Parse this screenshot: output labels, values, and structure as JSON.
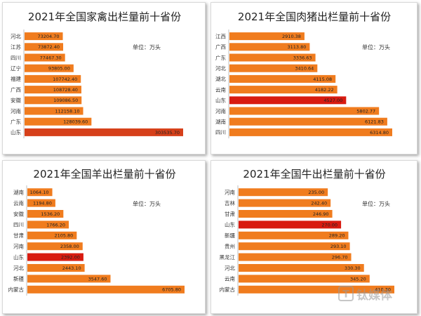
{
  "chart_data": [
    {
      "type": "bar",
      "orientation": "horizontal",
      "title": "2021年全国家禽出栏量前十省份",
      "unit_label": "单位：万头",
      "categories": [
        "河北",
        "江苏",
        "四川",
        "辽宁",
        "福建",
        "广西",
        "安徽",
        "河南",
        "广东",
        "山东"
      ],
      "values": [
        73204.7,
        73872.4,
        77467.3,
        93805.0,
        107742.4,
        108728.4,
        109086.5,
        112158.1,
        128039.6,
        303535.7
      ],
      "value_labels": [
        "73204.70",
        "73872.40",
        "77467.30",
        "93805.00",
        "107742.40",
        "108728.40",
        "109086.50",
        "112158.10",
        "128039.60",
        "303535.70"
      ],
      "bar_colors": [
        "#f07c1e",
        "#f07c1e",
        "#f07c1e",
        "#f07c1e",
        "#f07c1e",
        "#f07c1e",
        "#f07c1e",
        "#f07c1e",
        "#f07c1e",
        "#d6401a"
      ],
      "xlim": [
        0,
        303535.7
      ]
    },
    {
      "type": "bar",
      "orientation": "horizontal",
      "title": "2021年全国肉猪出栏量前十省份",
      "unit_label": "单位：万头",
      "categories": [
        "江西",
        "广西",
        "广东",
        "河北",
        "湖北",
        "云南",
        "山东",
        "河南",
        "湖南",
        "四川"
      ],
      "values": [
        2910.38,
        3113.8,
        3336.63,
        3410.64,
        4115.08,
        4182.22,
        4527.0,
        5802.77,
        6121.83,
        6314.8
      ],
      "value_labels": [
        "2910.38",
        "3113.80",
        "3336.63",
        "3410.64",
        "4115.08",
        "4182.22",
        "4527.00",
        "5802.77",
        "6121.83",
        "6314.80"
      ],
      "bar_colors": [
        "#f07c1e",
        "#f07c1e",
        "#f07c1e",
        "#f07c1e",
        "#f07c1e",
        "#f07c1e",
        "#d81b10",
        "#f07c1e",
        "#f07c1e",
        "#f07c1e"
      ],
      "xlim": [
        0,
        6314.8
      ]
    },
    {
      "type": "bar",
      "orientation": "horizontal",
      "title": "2021年全国羊出栏量前十省份",
      "unit_label": "单位：万头",
      "categories": [
        "湖南",
        "云南",
        "安徽",
        "四川",
        "甘肃",
        "河南",
        "山东",
        "河北",
        "新疆",
        "内蒙古"
      ],
      "values": [
        1064.1,
        1194.8,
        1536.2,
        1766.2,
        2105.8,
        2358.0,
        2392.0,
        2443.1,
        3547.6,
        6705.8
      ],
      "value_labels": [
        "1064.10",
        "1194.80",
        "1536.20",
        "1766.20",
        "2105.80",
        "2358.00",
        "2392.00",
        "2443.10",
        "3547.60",
        "6705.80"
      ],
      "bar_colors": [
        "#f07c1e",
        "#f07c1e",
        "#f07c1e",
        "#f07c1e",
        "#f07c1e",
        "#f07c1e",
        "#d81b10",
        "#f07c1e",
        "#f07c1e",
        "#f07c1e"
      ],
      "xlim": [
        0,
        6705.8
      ]
    },
    {
      "type": "bar",
      "orientation": "horizontal",
      "title": "2021年全国牛出栏量前十省份",
      "unit_label": "单位：万头",
      "categories": [
        "河南",
        "吉林",
        "甘肃",
        "山东",
        "新疆",
        "贵州",
        "黑龙江",
        "河北",
        "云南",
        "内蒙古"
      ],
      "values": [
        235.0,
        242.4,
        246.9,
        270.0,
        289.2,
        293.1,
        296.7,
        330.3,
        345.2,
        410.3
      ],
      "value_labels": [
        "235.00",
        "242.40",
        "246.90",
        "270.00",
        "289.20",
        "293.10",
        "296.70",
        "330.30",
        "345.20",
        "410.30"
      ],
      "bar_colors": [
        "#f07c1e",
        "#f07c1e",
        "#f07c1e",
        "#d81b10",
        "#f07c1e",
        "#f07c1e",
        "#f07c1e",
        "#f07c1e",
        "#f07c1e",
        "#f07c1e"
      ],
      "xlim": [
        0,
        410.3
      ]
    }
  ],
  "watermark": {
    "text": "钛媒体",
    "logo_letter": "T",
    "color": "#9a9a9a"
  },
  "colors": {
    "bar": "#f07c1e",
    "highlight": "#d81b10",
    "axis": "#bfbfbf"
  }
}
